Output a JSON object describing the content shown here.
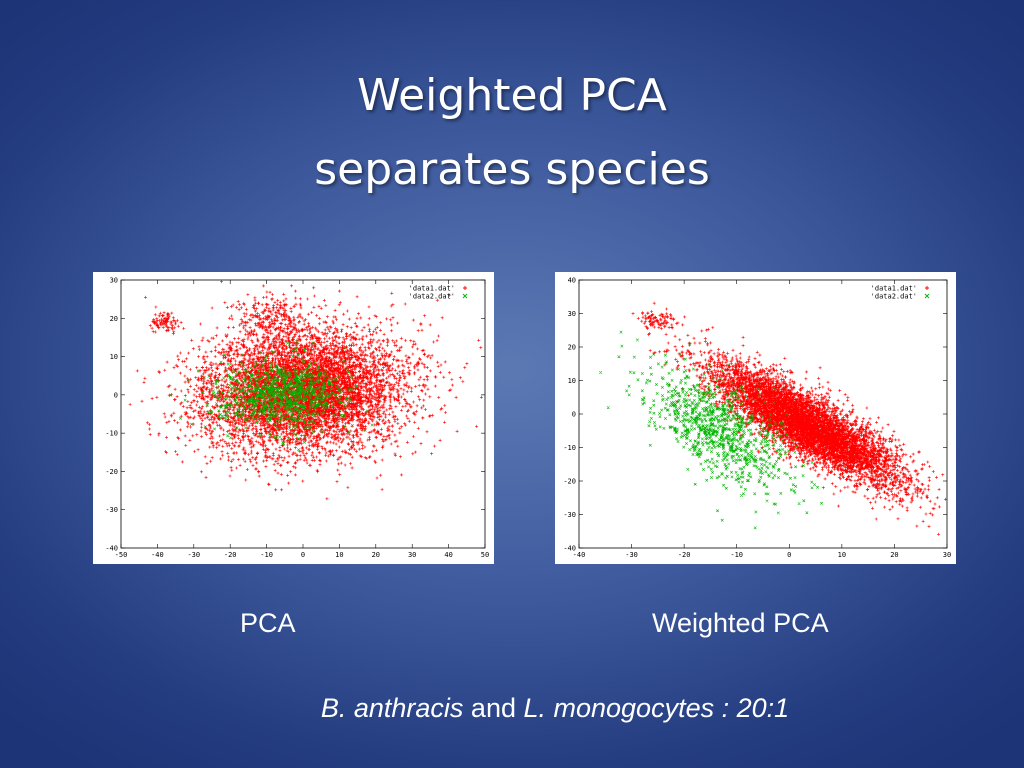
{
  "slide": {
    "title_line1": "Weighted PCA",
    "title_line2": "separates species",
    "caption_left": "PCA",
    "caption_right": "Weighted PCA",
    "footnote": {
      "species1": "B. anthracis",
      "and": " and ",
      "species2": "L. monogocytes",
      "ratio": " : 20:1"
    }
  },
  "colors": {
    "data1": "#ff0000",
    "data2": "#00b400",
    "axis": "#000000"
  },
  "chart_data": [
    {
      "type": "scatter",
      "xlim": [
        -50,
        50
      ],
      "ylim": [
        -40,
        30
      ],
      "xticks": [
        -50,
        -40,
        -30,
        -20,
        -10,
        0,
        10,
        20,
        30,
        40,
        50
      ],
      "yticks": [
        30,
        20,
        10,
        0,
        -10,
        -20,
        -30,
        -40
      ],
      "legend": "top-right",
      "series": [
        {
          "name": "'data1.dat'",
          "marker": "+",
          "color": "#ff0000",
          "clusters": [
            {
              "center": [
                0,
                1
              ],
              "spread": [
                14,
                8
              ],
              "corr": 0.1,
              "count": 6500
            },
            {
              "center": [
                -38,
                19
              ],
              "spread": [
                2,
                1.5
              ],
              "corr": 0,
              "count": 90
            },
            {
              "center": [
                -8,
                20
              ],
              "spread": [
                5,
                3
              ],
              "corr": 0,
              "count": 250
            }
          ]
        },
        {
          "name": "'data2.dat'",
          "marker": "x",
          "color": "#00b400",
          "clusters": [
            {
              "center": [
                -6,
                0
              ],
              "spread": [
                9,
                4.5
              ],
              "corr": 0,
              "count": 900
            }
          ]
        }
      ]
    },
    {
      "type": "scatter",
      "xlim": [
        -40,
        30
      ],
      "ylim": [
        -40,
        40
      ],
      "xticks": [
        -40,
        -30,
        -20,
        -10,
        0,
        10,
        20,
        30
      ],
      "yticks": [
        40,
        30,
        20,
        10,
        0,
        -10,
        -20,
        -30,
        -40
      ],
      "legend": "top-right",
      "series": [
        {
          "name": "'data1.dat'",
          "marker": "+",
          "color": "#ff0000",
          "clusters": [
            {
              "center": [
                3,
                -3
              ],
              "spread": [
                9,
                9
              ],
              "corr": -0.85,
              "count": 6500
            },
            {
              "center": [
                -25,
                28
              ],
              "spread": [
                1.8,
                1.5
              ],
              "corr": 0,
              "count": 90
            }
          ]
        },
        {
          "name": "'data2.dat'",
          "marker": "x",
          "color": "#00b400",
          "clusters": [
            {
              "center": [
                -13,
                -5
              ],
              "spread": [
                7,
                9
              ],
              "corr": -0.6,
              "count": 900
            }
          ]
        }
      ]
    }
  ]
}
